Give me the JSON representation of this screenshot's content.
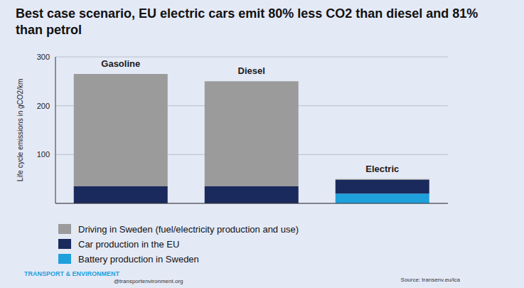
{
  "chart_data": {
    "type": "bar",
    "title": "Best case scenario, EU electric cars emit 80% less CO2 than diesel and 81% than petrol",
    "y_label": "Life cycle emissions in gCO2/km",
    "categories": [
      "Gasoline",
      "Diesel",
      "Electric"
    ],
    "series": [
      {
        "name": "Driving in Sweden (fuel/electricity production and use)",
        "color": "#9b9b9b",
        "values": [
          230,
          215,
          2
        ]
      },
      {
        "name": "Car production in the EU",
        "color": "#1b2a5c",
        "values": [
          35,
          35,
          28
        ]
      },
      {
        "name": "Battery production in Sweden",
        "color": "#1ea0dc",
        "values": [
          0,
          0,
          20
        ]
      }
    ],
    "stacked": true,
    "ylim": [
      0,
      300
    ],
    "yticks": [
      100,
      200,
      300
    ],
    "grid": true,
    "legend": "bottom-left",
    "logo": "TRANSPORT & ENVIRONMENT",
    "handle": "@transportenvironment.org",
    "source": "Source: transenv.eu/lca"
  }
}
